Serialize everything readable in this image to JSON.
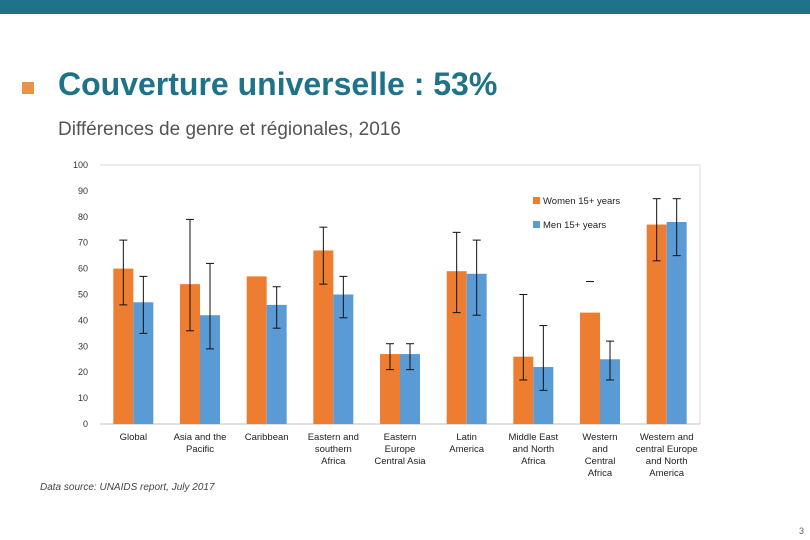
{
  "slide": {
    "title": "Couverture universelle : 53%",
    "subtitle": "Différences de genre et régionales, 2016",
    "source": "Data source: UNAIDS report, July 2017",
    "page_number": "3"
  },
  "colors": {
    "top_bar": "#1f7389",
    "title": "#1f7389",
    "bullet": "#e8934a",
    "women": "#ed7d31",
    "men": "#5b9bd5"
  },
  "chart_data": {
    "type": "bar",
    "title": "",
    "xlabel": "",
    "ylabel": "",
    "ylim": [
      0,
      100
    ],
    "yticks": [
      0,
      10,
      20,
      30,
      40,
      50,
      60,
      70,
      80,
      90,
      100
    ],
    "grid": false,
    "legend_position": "top-right",
    "categories": [
      [
        "Global"
      ],
      [
        "Asia and the",
        "Pacific"
      ],
      [
        "Caribbean"
      ],
      [
        "Eastern and",
        "southern",
        "Africa"
      ],
      [
        "Eastern",
        "Europe",
        "Central Asia"
      ],
      [
        "Latin",
        "America"
      ],
      [
        "Middle East",
        "and North",
        "Africa"
      ],
      [
        "Western",
        "and",
        "Central",
        "Africa"
      ],
      [
        "Western and",
        "central Europe",
        "and North",
        "America"
      ]
    ],
    "series": [
      {
        "name": "Women 15+ years",
        "values": [
          60,
          54,
          57,
          67,
          27,
          59,
          26,
          43,
          77
        ],
        "error_low": [
          46,
          36,
          null,
          54,
          21,
          43,
          17,
          null,
          63
        ],
        "error_high": [
          71,
          79,
          null,
          76,
          31,
          74,
          50,
          55,
          87
        ]
      },
      {
        "name": "Men 15+ years",
        "values": [
          47,
          42,
          46,
          50,
          27,
          58,
          22,
          25,
          78
        ],
        "error_low": [
          35,
          29,
          37,
          41,
          21,
          42,
          13,
          17,
          65
        ],
        "error_high": [
          57,
          62,
          53,
          57,
          31,
          71,
          38,
          32,
          87
        ]
      }
    ]
  }
}
